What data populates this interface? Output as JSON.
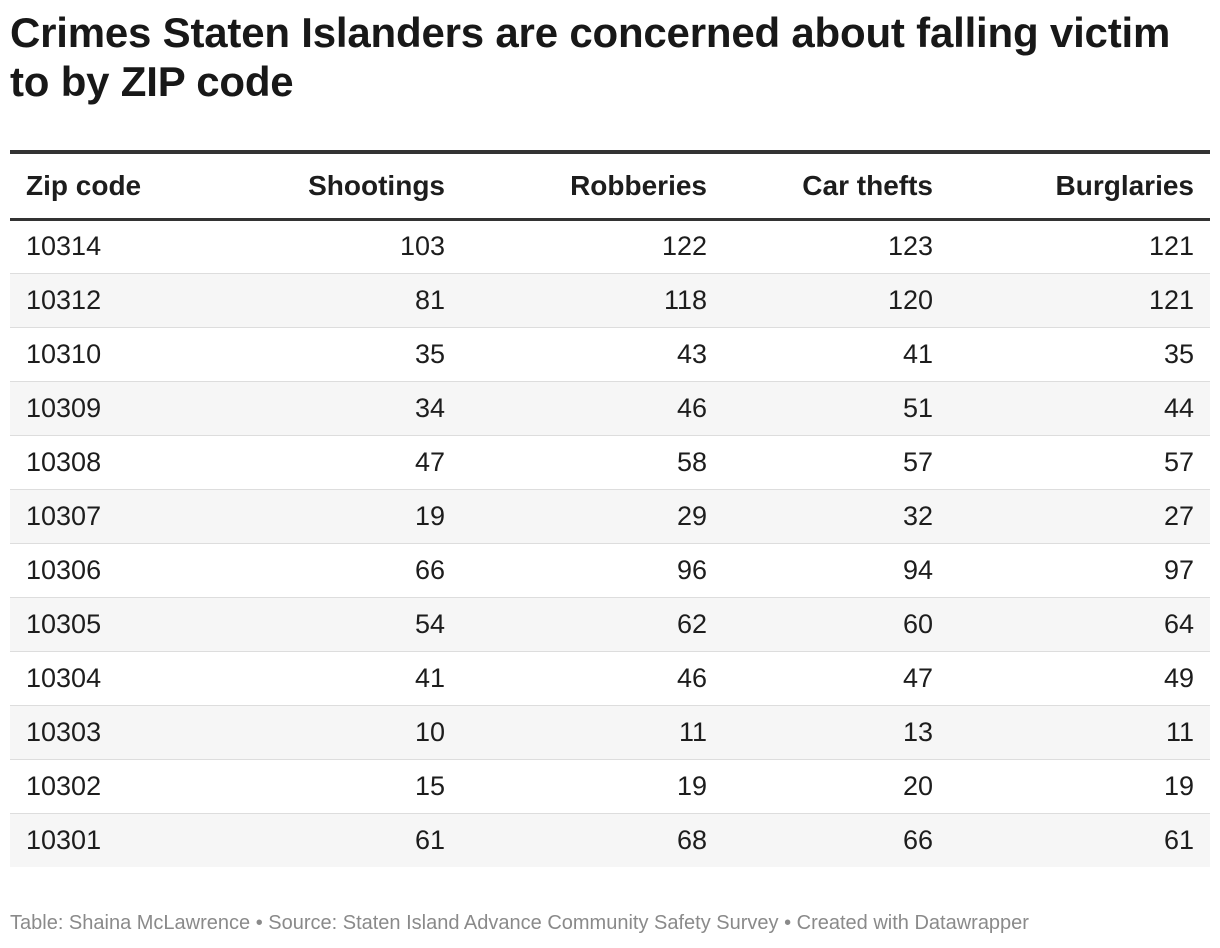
{
  "title": "Crimes Staten Islanders are concerned about falling victim to by ZIP code",
  "chart_data": {
    "type": "table",
    "columns": [
      "Zip code",
      "Shootings",
      "Robberies",
      "Car thefts",
      "Burglaries"
    ],
    "rows": [
      [
        "10314",
        "103",
        "122",
        "123",
        "121"
      ],
      [
        "10312",
        "81",
        "118",
        "120",
        "121"
      ],
      [
        "10310",
        "35",
        "43",
        "41",
        "35"
      ],
      [
        "10309",
        "34",
        "46",
        "51",
        "44"
      ],
      [
        "10308",
        "47",
        "58",
        "57",
        "57"
      ],
      [
        "10307",
        "19",
        "29",
        "32",
        "27"
      ],
      [
        "10306",
        "66",
        "96",
        "94",
        "97"
      ],
      [
        "10305",
        "54",
        "62",
        "60",
        "64"
      ],
      [
        "10304",
        "41",
        "46",
        "47",
        "49"
      ],
      [
        "10303",
        "10",
        "11",
        "13",
        "11"
      ],
      [
        "10302",
        "15",
        "19",
        "20",
        "19"
      ],
      [
        "10301",
        "61",
        "68",
        "66",
        "61"
      ]
    ]
  },
  "footer": "Table: Shaina McLawrence • Source: Staten Island Advance Community Safety Survey • Created with Datawrapper"
}
